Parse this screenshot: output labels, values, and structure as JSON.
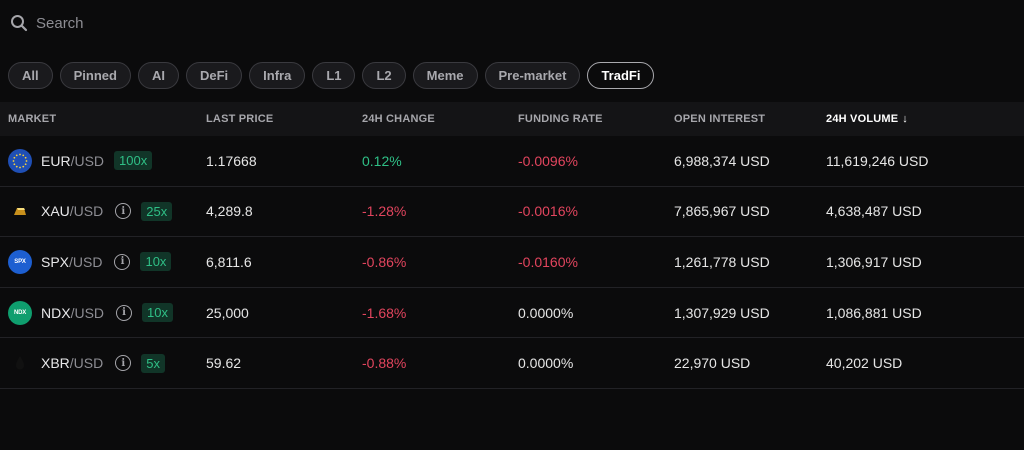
{
  "search": {
    "placeholder": "Search"
  },
  "filters": [
    "All",
    "Pinned",
    "AI",
    "DeFi",
    "Infra",
    "L1",
    "L2",
    "Meme",
    "Pre-market",
    "TradFi"
  ],
  "active_filter": "TradFi",
  "table": {
    "headers": {
      "market": "MARKET",
      "last_price": "LAST PRICE",
      "change_24h": "24H CHANGE",
      "funding_rate": "FUNDING RATE",
      "open_interest": "OPEN INTEREST",
      "volume_24h": "24H VOLUME",
      "sort_arrow": "↓"
    },
    "rows": [
      {
        "base": "EUR",
        "quote": "/USD",
        "leverage": "100x",
        "info": false,
        "price": "1.17668",
        "change": "0.12%",
        "change_dir": "pos",
        "funding": "-0.0096%",
        "funding_dir": "neg",
        "oi": "6,988,374 USD",
        "volume": "11,619,246 USD",
        "icon": "eur-flag-icon"
      },
      {
        "base": "XAU",
        "quote": "/USD",
        "leverage": "25x",
        "info": true,
        "price": "4,289.8",
        "change": "-1.28%",
        "change_dir": "neg",
        "funding": "-0.0016%",
        "funding_dir": "neg",
        "oi": "7,865,967 USD",
        "volume": "4,638,487 USD",
        "icon": "gold-bar-icon"
      },
      {
        "base": "SPX",
        "quote": "/USD",
        "leverage": "10x",
        "info": true,
        "price": "6,811.6",
        "change": "-0.86%",
        "change_dir": "neg",
        "funding": "-0.0160%",
        "funding_dir": "neg",
        "oi": "1,261,778 USD",
        "volume": "1,306,917 USD",
        "icon": "spx-icon",
        "icon_text": "SPX"
      },
      {
        "base": "NDX",
        "quote": "/USD",
        "leverage": "10x",
        "info": true,
        "price": "25,000",
        "change": "-1.68%",
        "change_dir": "neg",
        "funding": "0.0000%",
        "funding_dir": "none",
        "oi": "1,307,929 USD",
        "volume": "1,086,881 USD",
        "icon": "ndx-icon",
        "icon_text": "NDX"
      },
      {
        "base": "XBR",
        "quote": "/USD",
        "leverage": "5x",
        "info": true,
        "price": "59.62",
        "change": "-0.88%",
        "change_dir": "neg",
        "funding": "0.0000%",
        "funding_dir": "none",
        "oi": "22,970 USD",
        "volume": "40,202 USD",
        "icon": "oil-drop-icon"
      }
    ]
  }
}
